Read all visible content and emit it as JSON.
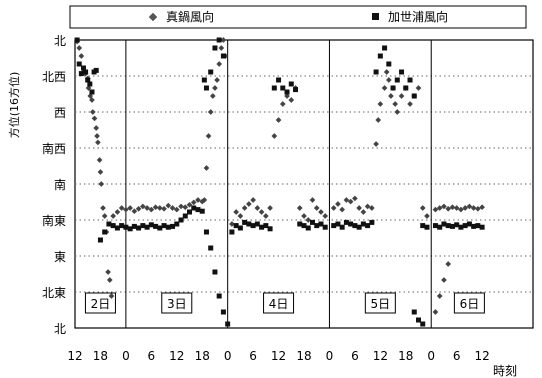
{
  "chart_data": {
    "type": "scatter",
    "title": "",
    "xlabel": "時刻",
    "ylabel": "方位(16方位)",
    "y_categories": [
      "北",
      "北東",
      "東",
      "南東",
      "南",
      "南西",
      "西",
      "北西",
      "北"
    ],
    "y_tick_values": [
      0,
      45,
      90,
      135,
      180,
      225,
      270,
      315,
      360
    ],
    "ylim": [
      0,
      360
    ],
    "xlim_hours": [
      0,
      108
    ],
    "x_tick_labels": [
      "12",
      "18",
      "0",
      "6",
      "12",
      "18",
      "0",
      "6",
      "12",
      "18",
      "0",
      "6",
      "12",
      "18",
      "0",
      "6",
      "12"
    ],
    "x_tick_hours": [
      0,
      6,
      12,
      18,
      24,
      30,
      36,
      42,
      48,
      54,
      60,
      66,
      72,
      78,
      84,
      90,
      96
    ],
    "day_separators_hours": [
      12,
      36,
      60,
      84
    ],
    "day_labels": [
      {
        "label": "2日",
        "hour": 6
      },
      {
        "label": "3日",
        "hour": 24
      },
      {
        "label": "4日",
        "hour": 48
      },
      {
        "label": "5日",
        "hour": 72
      },
      {
        "label": "6日",
        "hour": 93
      }
    ],
    "legend": {
      "placement": "top",
      "items": [
        {
          "name": "真鍋風向",
          "marker": "diamond"
        },
        {
          "name": "加世浦風向",
          "marker": "square"
        }
      ]
    },
    "grid": {
      "horizontal": "dotted",
      "vertical": "solid at day boundaries"
    },
    "series": [
      {
        "name": "真鍋風向",
        "marker": "diamond",
        "color": "#444444",
        "points": [
          [
            0.5,
            358
          ],
          [
            1.0,
            350
          ],
          [
            1.5,
            340
          ],
          [
            2.0,
            320
          ],
          [
            2.5,
            318
          ],
          [
            3.0,
            312
          ],
          [
            3.2,
            300
          ],
          [
            3.6,
            290
          ],
          [
            4.0,
            285
          ],
          [
            4.2,
            270
          ],
          [
            4.6,
            262
          ],
          [
            5.0,
            250
          ],
          [
            5.2,
            240
          ],
          [
            5.4,
            232
          ],
          [
            5.8,
            210
          ],
          [
            6.0,
            195
          ],
          [
            6.2,
            180
          ],
          [
            6.6,
            150
          ],
          [
            7.0,
            140
          ],
          [
            7.4,
            120
          ],
          [
            7.8,
            70
          ],
          [
            8.2,
            60
          ],
          [
            8.6,
            40
          ],
          [
            9,
            140
          ],
          [
            10,
            145
          ],
          [
            11,
            150
          ],
          [
            12,
            148
          ],
          [
            13,
            150
          ],
          [
            14,
            146
          ],
          [
            15,
            149
          ],
          [
            16,
            152
          ],
          [
            17,
            150
          ],
          [
            18,
            148
          ],
          [
            19,
            151
          ],
          [
            20,
            150
          ],
          [
            21,
            149
          ],
          [
            22,
            153
          ],
          [
            23,
            150
          ],
          [
            24,
            148
          ],
          [
            25,
            152
          ],
          [
            26,
            151
          ],
          [
            27,
            154
          ],
          [
            28,
            157
          ],
          [
            29,
            160
          ],
          [
            30,
            158
          ],
          [
            30.5,
            160
          ],
          [
            31,
            200
          ],
          [
            31.5,
            240
          ],
          [
            32,
            270
          ],
          [
            32.5,
            290
          ],
          [
            33,
            300
          ],
          [
            33.5,
            310
          ],
          [
            34,
            330
          ],
          [
            34.5,
            350
          ],
          [
            35,
            360
          ],
          [
            35.5,
            340
          ],
          [
            37,
            130
          ],
          [
            38,
            145
          ],
          [
            39,
            140
          ],
          [
            40,
            150
          ],
          [
            41,
            155
          ],
          [
            42,
            160
          ],
          [
            43,
            150
          ],
          [
            44,
            145
          ],
          [
            45,
            140
          ],
          [
            46,
            150
          ],
          [
            47,
            240
          ],
          [
            48,
            260
          ],
          [
            49,
            280
          ],
          [
            50,
            290
          ],
          [
            51,
            285
          ],
          [
            52,
            300
          ],
          [
            53,
            150
          ],
          [
            54,
            140
          ],
          [
            55,
            135
          ],
          [
            56,
            160
          ],
          [
            57,
            150
          ],
          [
            58,
            145
          ],
          [
            59,
            140
          ],
          [
            61,
            150
          ],
          [
            62,
            155
          ],
          [
            63,
            148
          ],
          [
            64,
            160
          ],
          [
            65,
            158
          ],
          [
            66,
            162
          ],
          [
            67,
            150
          ],
          [
            68,
            145
          ],
          [
            69,
            152
          ],
          [
            70,
            150
          ],
          [
            71,
            230
          ],
          [
            71.5,
            260
          ],
          [
            72,
            280
          ],
          [
            73,
            300
          ],
          [
            73.5,
            320
          ],
          [
            74,
            310
          ],
          [
            74.5,
            290
          ],
          [
            75,
            300
          ],
          [
            75.5,
            280
          ],
          [
            76,
            270
          ],
          [
            77,
            290
          ],
          [
            78,
            300
          ],
          [
            79,
            280
          ],
          [
            80,
            290
          ],
          [
            81,
            300
          ],
          [
            82,
            150
          ],
          [
            83,
            140
          ],
          [
            85,
            148
          ],
          [
            86,
            150
          ],
          [
            87,
            152
          ],
          [
            88,
            149
          ],
          [
            89,
            151
          ],
          [
            90,
            150
          ],
          [
            91,
            148
          ],
          [
            92,
            150
          ],
          [
            93,
            152
          ],
          [
            94,
            150
          ],
          [
            95,
            149
          ],
          [
            96,
            151
          ],
          [
            85,
            20
          ],
          [
            86,
            40
          ],
          [
            87,
            60
          ],
          [
            88,
            80
          ]
        ]
      },
      {
        "name": "加世浦風向",
        "marker": "square",
        "color": "#111111",
        "points": [
          [
            0.5,
            360
          ],
          [
            1.0,
            330
          ],
          [
            1.5,
            318
          ],
          [
            2.0,
            325
          ],
          [
            2.5,
            320
          ],
          [
            3.0,
            310
          ],
          [
            3.5,
            305
          ],
          [
            4.0,
            295
          ],
          [
            4.5,
            320
          ],
          [
            5.0,
            322
          ],
          [
            6,
            110
          ],
          [
            7,
            120
          ],
          [
            8,
            130
          ],
          [
            9,
            128
          ],
          [
            10,
            125
          ],
          [
            11,
            128
          ],
          [
            12,
            126
          ],
          [
            13,
            124
          ],
          [
            14,
            127
          ],
          [
            15,
            125
          ],
          [
            16,
            128
          ],
          [
            17,
            126
          ],
          [
            18,
            129
          ],
          [
            19,
            127
          ],
          [
            20,
            125
          ],
          [
            21,
            128
          ],
          [
            22,
            126
          ],
          [
            23,
            127
          ],
          [
            24,
            130
          ],
          [
            25,
            135
          ],
          [
            26,
            140
          ],
          [
            27,
            145
          ],
          [
            28,
            150
          ],
          [
            29,
            148
          ],
          [
            30,
            146
          ],
          [
            31,
            120
          ],
          [
            32,
            100
          ],
          [
            33,
            70
          ],
          [
            34,
            40
          ],
          [
            35,
            20
          ],
          [
            36,
            5
          ],
          [
            30.5,
            310
          ],
          [
            31,
            300
          ],
          [
            32,
            320
          ],
          [
            33,
            350
          ],
          [
            34,
            360
          ],
          [
            35,
            340
          ],
          [
            37,
            120
          ],
          [
            38,
            128
          ],
          [
            39,
            125
          ],
          [
            40,
            132
          ],
          [
            41,
            130
          ],
          [
            42,
            128
          ],
          [
            43,
            130
          ],
          [
            44,
            126
          ],
          [
            45,
            128
          ],
          [
            46,
            124
          ],
          [
            47,
            300
          ],
          [
            48,
            310
          ],
          [
            49,
            300
          ],
          [
            50,
            295
          ],
          [
            51,
            305
          ],
          [
            52,
            298
          ],
          [
            53,
            130
          ],
          [
            54,
            128
          ],
          [
            55,
            125
          ],
          [
            56,
            132
          ],
          [
            57,
            128
          ],
          [
            58,
            130
          ],
          [
            59,
            126
          ],
          [
            61,
            128
          ],
          [
            62,
            130
          ],
          [
            63,
            126
          ],
          [
            64,
            132
          ],
          [
            65,
            130
          ],
          [
            66,
            128
          ],
          [
            67,
            126
          ],
          [
            68,
            130
          ],
          [
            69,
            128
          ],
          [
            70,
            132
          ],
          [
            71,
            320
          ],
          [
            72,
            340
          ],
          [
            73,
            350
          ],
          [
            74,
            330
          ],
          [
            75,
            300
          ],
          [
            76,
            310
          ],
          [
            77,
            320
          ],
          [
            78,
            300
          ],
          [
            79,
            310
          ],
          [
            80,
            290
          ],
          [
            82,
            128
          ],
          [
            83,
            126
          ],
          [
            85,
            128
          ],
          [
            86,
            126
          ],
          [
            87,
            130
          ],
          [
            88,
            128
          ],
          [
            89,
            127
          ],
          [
            90,
            129
          ],
          [
            91,
            126
          ],
          [
            92,
            128
          ],
          [
            93,
            130
          ],
          [
            94,
            127
          ],
          [
            95,
            128
          ],
          [
            96,
            126
          ],
          [
            80,
            20
          ],
          [
            81,
            10
          ],
          [
            82,
            5
          ]
        ]
      }
    ]
  }
}
